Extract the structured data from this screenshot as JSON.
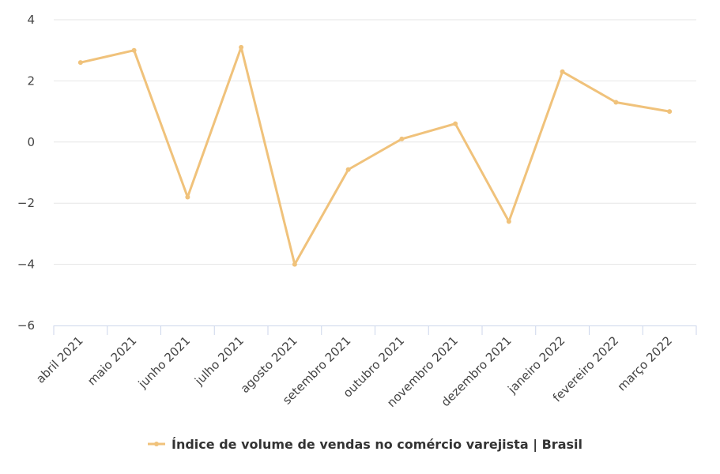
{
  "chart_data": {
    "type": "line",
    "title": "",
    "xlabel": "",
    "ylabel": "",
    "categories": [
      "abril 2021",
      "maio 2021",
      "junho 2021",
      "julho 2021",
      "agosto 2021",
      "setembro 2021",
      "outubro 2021",
      "novembro 2021",
      "dezembro 2021",
      "janeiro 2022",
      "fevereiro 2022",
      "março 2022"
    ],
    "series": [
      {
        "name": "Índice de volume de vendas no comércio varejista | Brasil",
        "values": [
          2.6,
          3.0,
          -1.8,
          3.1,
          -4.0,
          -0.9,
          0.1,
          0.6,
          -2.6,
          2.3,
          1.3,
          1.0
        ],
        "color": "#f0c27b"
      }
    ],
    "ylim": [
      -6,
      4
    ],
    "yticks": [
      4,
      2,
      0,
      -2,
      -4,
      -6
    ],
    "ytick_labels": [
      "4",
      "2",
      "0",
      "−2",
      "−4",
      "−6"
    ],
    "grid": true,
    "legend_position": "bottom-center"
  }
}
